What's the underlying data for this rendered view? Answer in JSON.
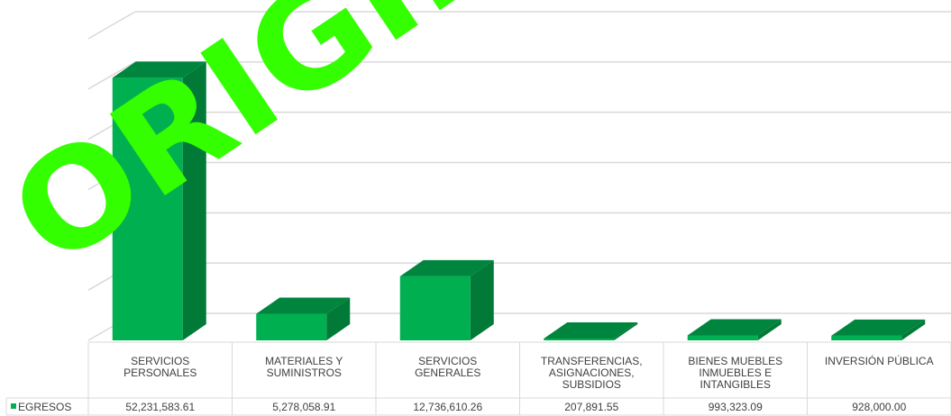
{
  "chart_data": {
    "type": "bar",
    "style": "3d-column-with-data-table",
    "categories": [
      [
        "SERVICIOS",
        "PERSONALES"
      ],
      [
        "MATERIALES Y",
        "SUMINISTROS"
      ],
      [
        "SERVICIOS",
        "GENERALES"
      ],
      [
        "TRANSFERENCIAS,",
        "ASIGNACIONES,",
        "SUBSIDIOS"
      ],
      [
        "BIENES MUEBLES",
        "INMUEBLES E",
        "INTANGIBLES"
      ],
      [
        "INVERSIÓN PÚBLICA"
      ]
    ],
    "series": [
      {
        "name": "EGRESOS",
        "values": [
          52231583.61,
          5278058.91,
          12736610.26,
          207891.55,
          993323.09,
          928000.0
        ],
        "labels": [
          "52,231,583.61",
          "5,278,058.91",
          "12,736,610.26",
          "207,891.55",
          "993,323.09",
          "928,000.00"
        ]
      }
    ],
    "ylim": [
      0,
      60000000
    ],
    "grid": true,
    "legend": "data-table",
    "colors": {
      "front": "#00b050",
      "side": "#007a36",
      "top": "#00853e",
      "legend_key": "#00b050"
    }
  },
  "watermark": {
    "text": "ORIGINAL"
  }
}
